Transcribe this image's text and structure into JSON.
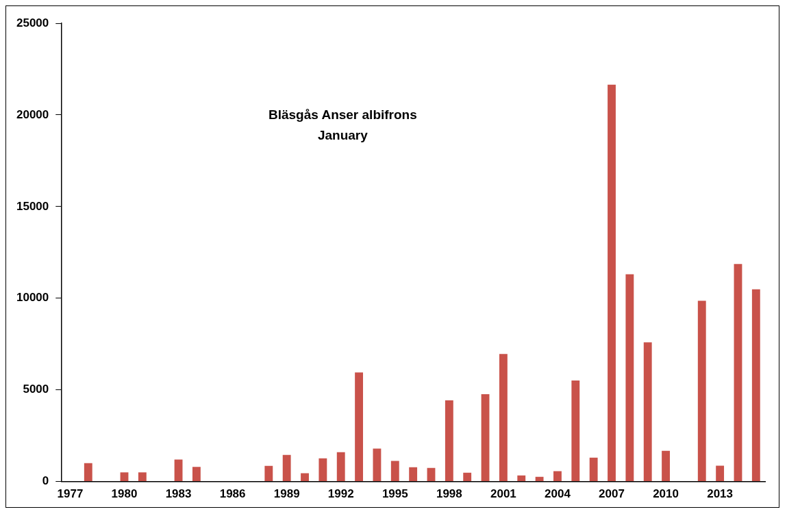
{
  "chart_data": {
    "type": "bar",
    "annotations": [
      "Bläsgås Anser albifrons",
      "January"
    ],
    "categories": [
      "1977",
      null,
      null,
      "1980",
      null,
      null,
      "1983",
      null,
      null,
      "1986",
      null,
      null,
      "1989",
      null,
      null,
      "1992",
      null,
      null,
      "1995",
      null,
      null,
      "1998",
      null,
      null,
      "2001",
      null,
      null,
      "2004",
      null,
      null,
      "2007",
      null,
      null,
      "2010",
      null,
      null,
      "2013",
      null,
      null
    ],
    "values": [
      0,
      1000,
      0,
      500,
      500,
      0,
      1200,
      800,
      0,
      0,
      0,
      850,
      1450,
      450,
      1260,
      1600,
      5950,
      1800,
      1120,
      780,
      740,
      4430,
      480,
      4760,
      6960,
      330,
      260,
      560,
      5510,
      1300,
      21650,
      11310,
      7590,
      1670,
      0,
      9860,
      860,
      11870,
      10490
    ],
    "color": "#c9524a",
    "ylim": [
      0,
      25000
    ],
    "yticks": [
      0,
      5000,
      10000,
      15000,
      20000,
      25000
    ],
    "grid": false,
    "legend": false
  }
}
